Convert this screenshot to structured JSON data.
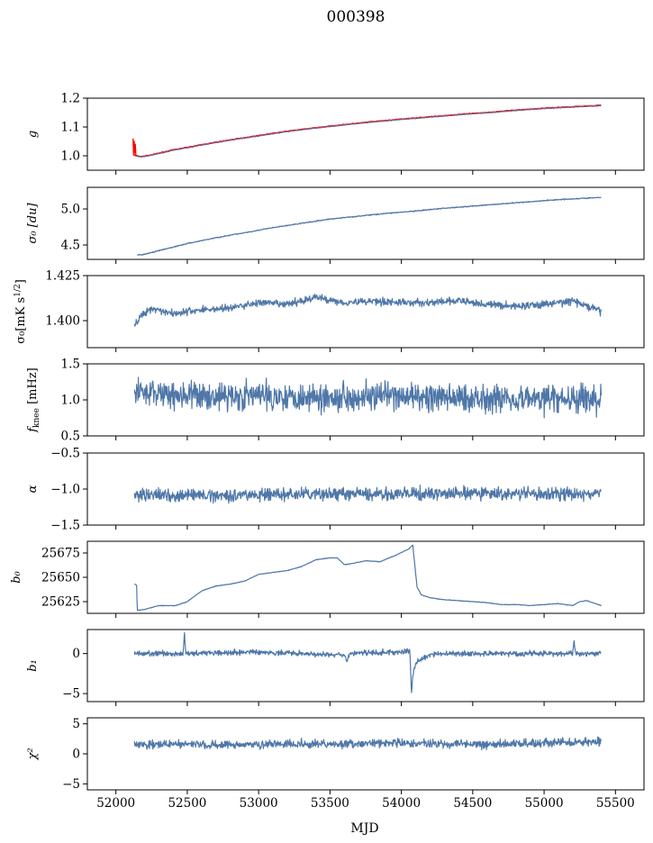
{
  "figure": {
    "title": "000398",
    "xlabel": "MJD"
  },
  "chart_data": [
    {
      "type": "line",
      "ylabel": "g",
      "ylim": [
        0.95,
        1.2
      ],
      "yticks": [
        {
          "v": 1.0,
          "t": "1.0"
        },
        {
          "v": 1.1,
          "t": "1.1"
        },
        {
          "v": 1.2,
          "t": "1.2"
        }
      ],
      "series": [
        {
          "color": "#ff0000",
          "width": 1.6,
          "noise": 0.0012,
          "x": [
            52120,
            52140,
            52180,
            52250,
            52400,
            52600,
            52800,
            53000,
            53200,
            53400,
            53600,
            53800,
            54000,
            54200,
            54400,
            54600,
            54800,
            55000,
            55200,
            55400
          ],
          "y": [
            1.005,
            1.0,
            0.997,
            1.003,
            1.02,
            1.038,
            1.055,
            1.07,
            1.085,
            1.097,
            1.108,
            1.118,
            1.127,
            1.135,
            1.143,
            1.15,
            1.158,
            1.165,
            1.17,
            1.175
          ]
        },
        {
          "color": "#ff0000",
          "width": 1.3,
          "spikes": true,
          "x": [
            52120,
            52124,
            52128,
            52132,
            52136,
            52140
          ],
          "y": [
            1.06,
            1.005,
            1.05,
            1.01,
            1.04,
            1.0
          ]
        },
        {
          "color": "#4f77a8",
          "width": 1.0,
          "noise": 0.0,
          "x": [
            52140,
            52180,
            52250,
            52400,
            52600,
            52800,
            53000,
            53200,
            53400,
            53600,
            53800,
            54000,
            54200,
            54400,
            54600,
            54800,
            55000,
            55200,
            55400
          ],
          "y": [
            0.999,
            0.996,
            1.002,
            1.019,
            1.037,
            1.054,
            1.069,
            1.084,
            1.096,
            1.107,
            1.117,
            1.126,
            1.134,
            1.142,
            1.149,
            1.157,
            1.164,
            1.169,
            1.174
          ]
        }
      ]
    },
    {
      "type": "line",
      "ylabel": "σ₀ [du]",
      "ylim": [
        4.3,
        5.3
      ],
      "yticks": [
        {
          "v": 4.5,
          "t": "4.5"
        },
        {
          "v": 5.0,
          "t": "5.0"
        }
      ],
      "series": [
        {
          "color": "#4f77a8",
          "width": 1.2,
          "noise": 0.006,
          "x": [
            52150,
            52200,
            52300,
            52500,
            52700,
            52900,
            53100,
            53300,
            53500,
            53700,
            53900,
            54100,
            54300,
            54500,
            54700,
            54900,
            55100,
            55300,
            55400
          ],
          "y": [
            4.36,
            4.37,
            4.42,
            4.52,
            4.6,
            4.67,
            4.74,
            4.8,
            4.86,
            4.9,
            4.94,
            4.97,
            5.01,
            5.04,
            5.07,
            5.1,
            5.13,
            5.15,
            5.16
          ]
        }
      ]
    },
    {
      "type": "line",
      "ylabel": "σ₀[mK s^1/2]",
      "ylim": [
        1.385,
        1.425
      ],
      "yticks": [
        {
          "v": 1.4,
          "t": "1.400"
        },
        {
          "v": 1.425,
          "t": "1.425"
        }
      ],
      "series": [
        {
          "color": "#4f77a8",
          "width": 1.2,
          "noise": 0.0018,
          "x": [
            52130,
            52180,
            52250,
            52400,
            52600,
            52800,
            53000,
            53200,
            53400,
            53600,
            53800,
            54000,
            54200,
            54400,
            54600,
            54800,
            55000,
            55200,
            55400
          ],
          "y": [
            1.397,
            1.403,
            1.407,
            1.404,
            1.406,
            1.407,
            1.41,
            1.409,
            1.413,
            1.41,
            1.411,
            1.41,
            1.41,
            1.411,
            1.409,
            1.408,
            1.409,
            1.411,
            1.405
          ]
        }
      ]
    },
    {
      "type": "line",
      "ylabel": "f_knee [mHz]",
      "ylim": [
        0.5,
        1.5
      ],
      "yticks": [
        {
          "v": 0.5,
          "t": "0.5"
        },
        {
          "v": 1.0,
          "t": "1.0"
        },
        {
          "v": 1.5,
          "t": "1.5"
        }
      ],
      "series": [
        {
          "color": "#4f77a8",
          "width": 1.2,
          "noise": 0.17,
          "x": [
            52130,
            52300,
            52600,
            53000,
            53400,
            53800,
            54200,
            54600,
            55000,
            55400
          ],
          "y": [
            1.12,
            1.1,
            1.05,
            1.06,
            1.04,
            1.05,
            1.03,
            1.03,
            1.02,
            1.0
          ]
        }
      ]
    },
    {
      "type": "line",
      "ylabel": "α",
      "ylim": [
        -1.5,
        -0.5
      ],
      "yticks": [
        {
          "v": -1.5,
          "t": "−1.5"
        },
        {
          "v": -1.0,
          "t": "−1.0"
        },
        {
          "v": -0.5,
          "t": "−0.5"
        }
      ],
      "series": [
        {
          "color": "#4f77a8",
          "width": 1.2,
          "noise": 0.075,
          "x": [
            52130,
            52500,
            53000,
            53500,
            54000,
            54500,
            55000,
            55400
          ],
          "y": [
            -1.08,
            -1.09,
            -1.08,
            -1.07,
            -1.07,
            -1.06,
            -1.07,
            -1.07
          ]
        }
      ]
    },
    {
      "type": "line",
      "ylabel": "b₀",
      "ylim": [
        25613,
        25687
      ],
      "yticks": [
        {
          "v": 25625,
          "t": "25625"
        },
        {
          "v": 25650,
          "t": "25650"
        },
        {
          "v": 25675,
          "t": "25675"
        }
      ],
      "series": [
        {
          "color": "#4f77a8",
          "width": 1.2,
          "noise": 0.25,
          "x": [
            52130,
            52145,
            52150,
            52200,
            52300,
            52420,
            52500,
            52600,
            52700,
            52800,
            52900,
            53000,
            53100,
            53200,
            53300,
            53400,
            53500,
            53550,
            53600,
            53650,
            53750,
            53850,
            53950,
            54050,
            54080,
            54110,
            54140,
            54200,
            54300,
            54400,
            54500,
            54600,
            54700,
            54800,
            54900,
            55000,
            55100,
            55200,
            55250,
            55300,
            55400
          ],
          "y": [
            25643,
            25642,
            25616,
            25617,
            25621,
            25621,
            25625,
            25636,
            25641,
            25643,
            25646,
            25653,
            25655,
            25657,
            25661,
            25668,
            25670,
            25670,
            25663,
            25664,
            25667,
            25666,
            25672,
            25679,
            25683,
            25640,
            25632,
            25629,
            25627,
            25626,
            25625,
            25624,
            25622,
            25622,
            25621,
            25622,
            25623,
            25621,
            25625,
            25626,
            25621
          ]
        }
      ]
    },
    {
      "type": "line",
      "ylabel": "b₁",
      "ylim": [
        -6,
        3
      ],
      "yticks": [
        {
          "v": -5,
          "t": "−5"
        },
        {
          "v": 0,
          "t": "0"
        }
      ],
      "series": [
        {
          "color": "#4f77a8",
          "width": 1.2,
          "noise": 0.28,
          "x": [
            52130,
            52470,
            52480,
            52490,
            52600,
            53000,
            53600,
            53620,
            53640,
            54000,
            54060,
            54070,
            54080,
            54090,
            54110,
            54160,
            54250,
            54500,
            55000,
            55200,
            55210,
            55220,
            55400
          ],
          "y": [
            0.0,
            0.0,
            2.5,
            0.0,
            0.1,
            0.2,
            -0.2,
            -1.0,
            0.0,
            0.2,
            0.4,
            -5.2,
            -3.0,
            -1.8,
            -1.0,
            -0.4,
            0.0,
            0.0,
            0.0,
            0.0,
            1.6,
            0.0,
            0.0
          ]
        }
      ]
    },
    {
      "type": "line",
      "ylabel": "χ²",
      "ylim": [
        -6,
        6
      ],
      "yticks": [
        {
          "v": -5,
          "t": "−5"
        },
        {
          "v": 0,
          "t": "0"
        },
        {
          "v": 5,
          "t": "5"
        }
      ],
      "series": [
        {
          "color": "#4f77a8",
          "width": 1.2,
          "noise": 0.6,
          "x": [
            52130,
            52400,
            52700,
            53000,
            53300,
            53600,
            53900,
            54200,
            54500,
            54800,
            55100,
            55400
          ],
          "y": [
            1.5,
            1.6,
            1.5,
            1.6,
            1.7,
            1.6,
            1.8,
            1.7,
            1.6,
            1.7,
            1.9,
            2.0
          ]
        }
      ]
    }
  ],
  "x_axis": {
    "xlim": [
      51800,
      55700
    ],
    "ticks": [
      {
        "v": 52000,
        "t": "52000"
      },
      {
        "v": 52500,
        "t": "52500"
      },
      {
        "v": 53000,
        "t": "53000"
      },
      {
        "v": 53500,
        "t": "53500"
      },
      {
        "v": 54000,
        "t": "54000"
      },
      {
        "v": 54500,
        "t": "54500"
      },
      {
        "v": 55000,
        "t": "55000"
      },
      {
        "v": 55500,
        "t": "55500"
      }
    ]
  }
}
